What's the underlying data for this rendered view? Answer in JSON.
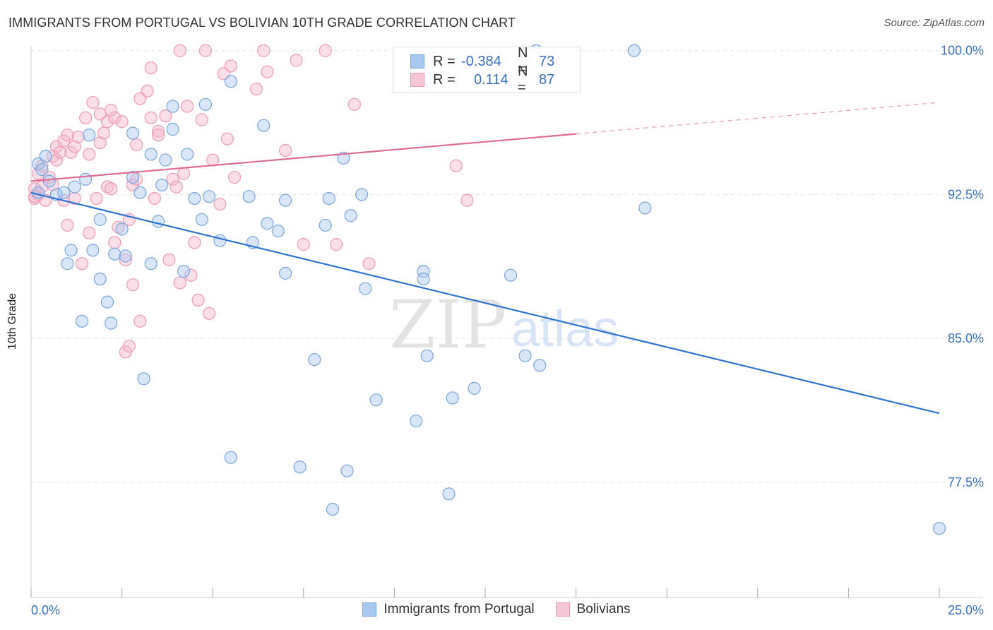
{
  "header": {
    "title": "IMMIGRANTS FROM PORTUGAL VS BOLIVIAN 10TH GRADE CORRELATION CHART",
    "source": "Source: ZipAtlas.com"
  },
  "watermark": {
    "zip": "ZIP",
    "atlas": "atlas"
  },
  "legend": {
    "rows": [
      {
        "r_label": "R =",
        "r_value": "-0.384",
        "n_label": "N =",
        "n_value": "73"
      },
      {
        "r_label": "R =",
        "r_value": "0.114",
        "n_label": "N =",
        "n_value": "87"
      }
    ]
  },
  "colors": {
    "blue_fill": "#a9c8ef",
    "blue_stroke": "#7aa6de",
    "blue_line": "#2f74d0",
    "pink_fill": "#f5b8cb",
    "pink_stroke": "#ee9ab4",
    "pink_line": "#e06c96",
    "tick_label": "#3a6fc4",
    "grid": "#e6e6e6"
  },
  "chart_data": {
    "type": "scatter",
    "title": "IMMIGRANTS FROM PORTUGAL VS BOLIVIAN 10TH GRADE CORRELATION CHART",
    "xlabel": "",
    "ylabel": "10th Grade",
    "xlim": [
      0,
      25
    ],
    "ylim": [
      71.5,
      100.8
    ],
    "x_tick_labels": [
      "0.0%",
      "25.0%"
    ],
    "y_ticks": [
      77.5,
      85.0,
      92.5,
      100.0
    ],
    "y_tick_labels": [
      "77.5%",
      "85.0%",
      "92.5%",
      "100.0%"
    ],
    "grid": true,
    "legend_position": "bottom",
    "series": [
      {
        "name": "Immigrants from Portugal",
        "color": "#a9c8ef",
        "R": -0.384,
        "N": 73,
        "trend": {
          "x": [
            0,
            25
          ],
          "y": [
            92.6,
            81.1
          ],
          "solid_to": 25
        },
        "points": [
          [
            0.2,
            94.1
          ],
          [
            0.2,
            92.6
          ],
          [
            0.3,
            93.8
          ],
          [
            0.4,
            94.5
          ],
          [
            0.5,
            93.2
          ],
          [
            0.7,
            92.5
          ],
          [
            0.9,
            92.6
          ],
          [
            1.0,
            88.9
          ],
          [
            1.1,
            89.6
          ],
          [
            1.2,
            92.9
          ],
          [
            1.4,
            85.9
          ],
          [
            1.5,
            93.3
          ],
          [
            1.6,
            95.6
          ],
          [
            1.7,
            89.6
          ],
          [
            1.9,
            91.2
          ],
          [
            1.9,
            88.1
          ],
          [
            2.1,
            86.9
          ],
          [
            2.2,
            85.8
          ],
          [
            2.3,
            89.4
          ],
          [
            2.5,
            90.7
          ],
          [
            2.6,
            89.3
          ],
          [
            2.8,
            95.7
          ],
          [
            2.8,
            93.4
          ],
          [
            3.0,
            92.6
          ],
          [
            3.1,
            82.9
          ],
          [
            3.3,
            88.9
          ],
          [
            3.3,
            94.6
          ],
          [
            3.5,
            91.1
          ],
          [
            3.6,
            93.0
          ],
          [
            3.7,
            94.3
          ],
          [
            3.9,
            95.9
          ],
          [
            3.9,
            97.1
          ],
          [
            4.2,
            88.5
          ],
          [
            4.3,
            94.6
          ],
          [
            4.5,
            92.3
          ],
          [
            4.7,
            91.2
          ],
          [
            4.8,
            97.2
          ],
          [
            4.9,
            92.4
          ],
          [
            5.2,
            90.1
          ],
          [
            5.5,
            78.8
          ],
          [
            5.5,
            98.4
          ],
          [
            6.0,
            92.4
          ],
          [
            6.1,
            90.0
          ],
          [
            6.4,
            96.1
          ],
          [
            6.5,
            91.0
          ],
          [
            6.8,
            90.6
          ],
          [
            7.0,
            88.4
          ],
          [
            7.0,
            92.2
          ],
          [
            7.4,
            78.3
          ],
          [
            7.8,
            83.9
          ],
          [
            8.1,
            90.9
          ],
          [
            8.2,
            92.3
          ],
          [
            8.3,
            76.1
          ],
          [
            8.6,
            94.4
          ],
          [
            8.7,
            78.1
          ],
          [
            8.8,
            91.4
          ],
          [
            9.1,
            92.5
          ],
          [
            9.2,
            87.6
          ],
          [
            9.5,
            81.8
          ],
          [
            10.6,
            80.7
          ],
          [
            10.8,
            88.5
          ],
          [
            10.8,
            88.1
          ],
          [
            10.9,
            84.1
          ],
          [
            11.5,
            76.9
          ],
          [
            11.6,
            81.9
          ],
          [
            12.2,
            82.4
          ],
          [
            13.2,
            88.3
          ],
          [
            13.6,
            84.1
          ],
          [
            13.9,
            100.0
          ],
          [
            14.0,
            83.6
          ],
          [
            16.6,
            100.0
          ],
          [
            16.9,
            91.8
          ],
          [
            25.0,
            75.1
          ]
        ]
      },
      {
        "name": "Bolivians",
        "color": "#f5b8cb",
        "R": 0.114,
        "N": 87,
        "trend": {
          "x": [
            0,
            25
          ],
          "y": [
            93.2,
            97.3
          ],
          "solid_to": 15
        },
        "points": [
          [
            0.1,
            92.3
          ],
          [
            0.1,
            92.8
          ],
          [
            0.2,
            93.6
          ],
          [
            0.2,
            92.5
          ],
          [
            0.3,
            92.9
          ],
          [
            0.3,
            94.0
          ],
          [
            0.4,
            92.2
          ],
          [
            0.5,
            93.4
          ],
          [
            0.6,
            94.5
          ],
          [
            0.6,
            93.0
          ],
          [
            0.7,
            95.0
          ],
          [
            0.7,
            94.3
          ],
          [
            0.8,
            94.7
          ],
          [
            0.9,
            92.2
          ],
          [
            0.9,
            95.3
          ],
          [
            1.0,
            95.6
          ],
          [
            1.0,
            90.9
          ],
          [
            1.1,
            94.7
          ],
          [
            1.2,
            92.3
          ],
          [
            1.2,
            95.0
          ],
          [
            1.3,
            95.5
          ],
          [
            1.4,
            88.9
          ],
          [
            1.5,
            96.5
          ],
          [
            1.6,
            94.6
          ],
          [
            1.6,
            90.5
          ],
          [
            1.7,
            97.3
          ],
          [
            1.8,
            92.3
          ],
          [
            1.9,
            96.7
          ],
          [
            1.9,
            95.2
          ],
          [
            2.0,
            95.7
          ],
          [
            2.1,
            96.3
          ],
          [
            2.1,
            92.9
          ],
          [
            2.2,
            96.9
          ],
          [
            2.2,
            92.8
          ],
          [
            2.3,
            96.5
          ],
          [
            2.3,
            90.0
          ],
          [
            2.4,
            90.8
          ],
          [
            2.5,
            96.3
          ],
          [
            2.6,
            84.3
          ],
          [
            2.6,
            89.1
          ],
          [
            2.7,
            91.2
          ],
          [
            2.7,
            84.6
          ],
          [
            2.8,
            87.8
          ],
          [
            2.8,
            93.0
          ],
          [
            2.9,
            95.1
          ],
          [
            2.9,
            93.3
          ],
          [
            3.0,
            97.5
          ],
          [
            3.0,
            85.9
          ],
          [
            3.2,
            97.9
          ],
          [
            3.3,
            99.1
          ],
          [
            3.3,
            96.5
          ],
          [
            3.4,
            92.3
          ],
          [
            3.5,
            95.8
          ],
          [
            3.5,
            95.6
          ],
          [
            3.7,
            96.6
          ],
          [
            3.8,
            89.1
          ],
          [
            3.9,
            93.3
          ],
          [
            4.0,
            92.9
          ],
          [
            4.1,
            87.9
          ],
          [
            4.1,
            100.0
          ],
          [
            4.2,
            93.6
          ],
          [
            4.3,
            97.1
          ],
          [
            4.4,
            88.3
          ],
          [
            4.5,
            90.0
          ],
          [
            4.6,
            87.0
          ],
          [
            4.7,
            96.4
          ],
          [
            4.8,
            100.0
          ],
          [
            4.9,
            86.3
          ],
          [
            5.0,
            94.3
          ],
          [
            5.2,
            92.0
          ],
          [
            5.3,
            98.8
          ],
          [
            5.4,
            95.4
          ],
          [
            5.5,
            99.2
          ],
          [
            5.6,
            93.4
          ],
          [
            6.2,
            98.0
          ],
          [
            6.4,
            100.0
          ],
          [
            6.5,
            98.9
          ],
          [
            7.0,
            94.8
          ],
          [
            7.3,
            99.5
          ],
          [
            7.5,
            89.9
          ],
          [
            8.1,
            100.0
          ],
          [
            8.4,
            89.9
          ],
          [
            8.9,
            97.2
          ],
          [
            9.3,
            88.9
          ],
          [
            11.7,
            94.0
          ],
          [
            12.0,
            92.2
          ],
          [
            0.1,
            92.4
          ]
        ]
      }
    ]
  }
}
